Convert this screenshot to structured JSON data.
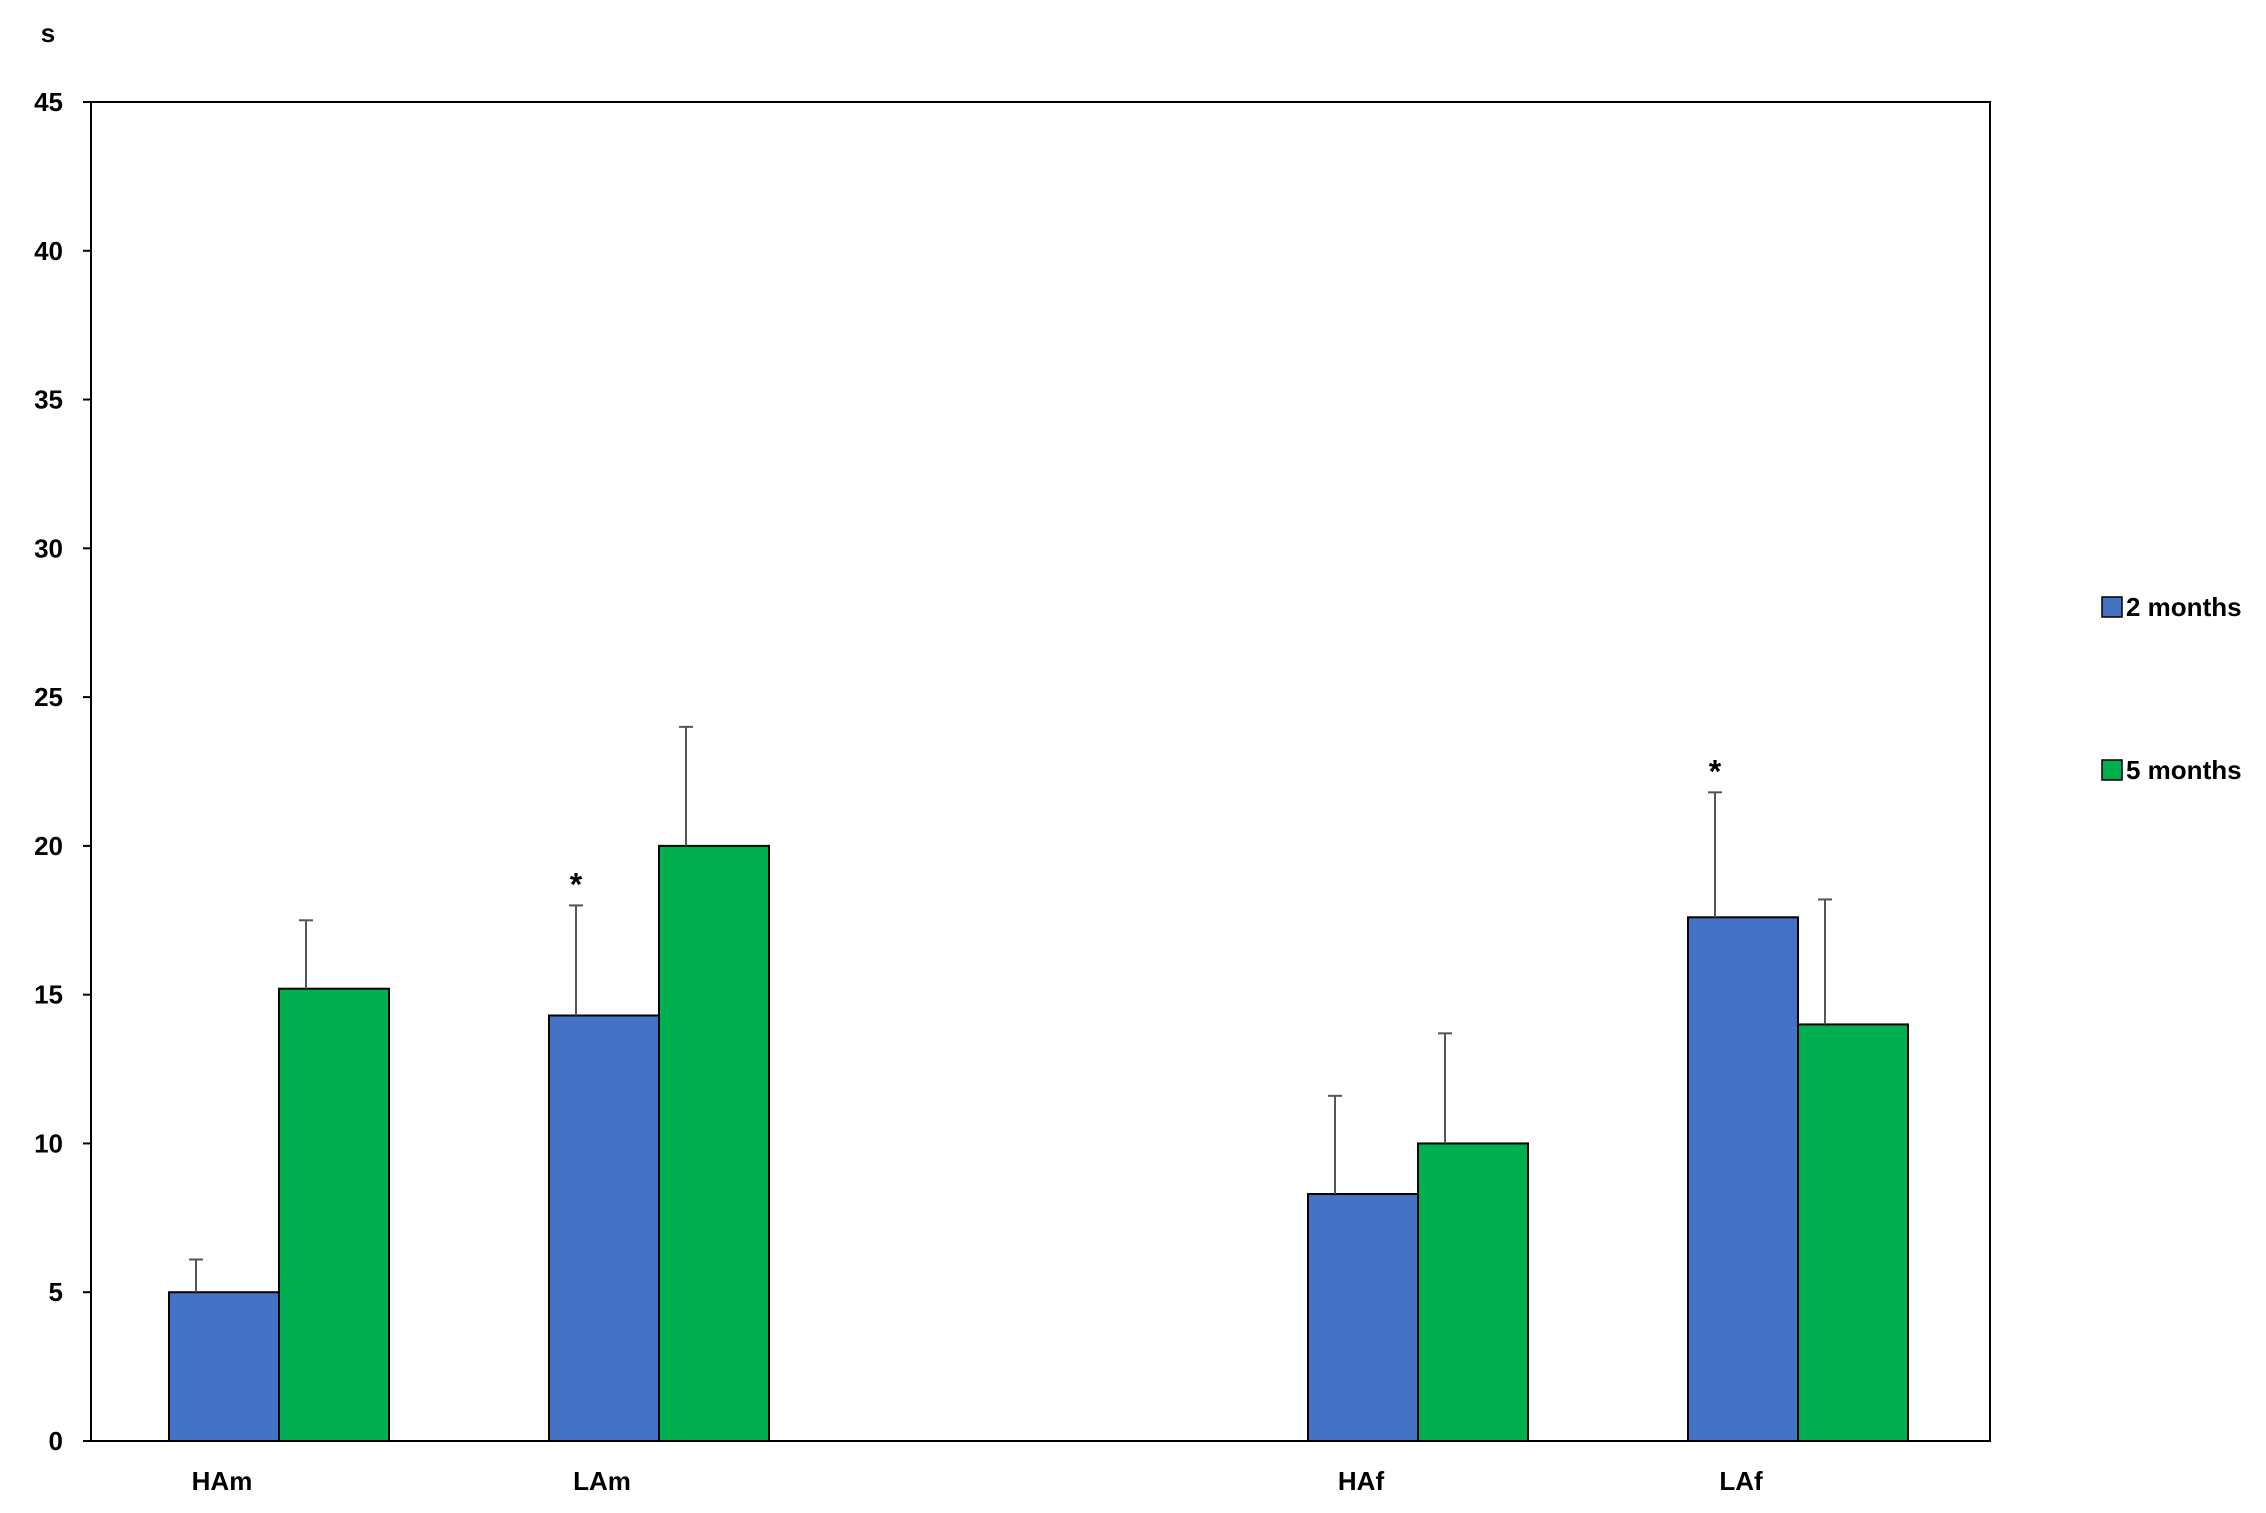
{
  "chart_data": {
    "type": "bar",
    "ylabel": "s",
    "xlabel": "",
    "ylim": [
      0,
      45
    ],
    "yticks": [
      0,
      5,
      10,
      15,
      20,
      25,
      30,
      35,
      40,
      45
    ],
    "grid": false,
    "legend_position": "right",
    "categories": [
      "HAm",
      "LAm",
      "HAf",
      "LAf"
    ],
    "series": [
      {
        "name": "2 months",
        "color": "#4472C4",
        "values": [
          5.0,
          14.3,
          8.3,
          17.6
        ],
        "error": [
          1.1,
          3.7,
          3.3,
          4.2
        ]
      },
      {
        "name": "5 months",
        "color": "#00B050",
        "values": [
          15.2,
          20.0,
          10.0,
          14.0
        ],
        "error": [
          2.3,
          4.0,
          3.7,
          4.2
        ]
      }
    ],
    "annotations": [
      {
        "category": "LAm",
        "series": "2 months",
        "text": "*"
      },
      {
        "category": "LAf",
        "series": "2 months",
        "text": "*"
      }
    ]
  }
}
